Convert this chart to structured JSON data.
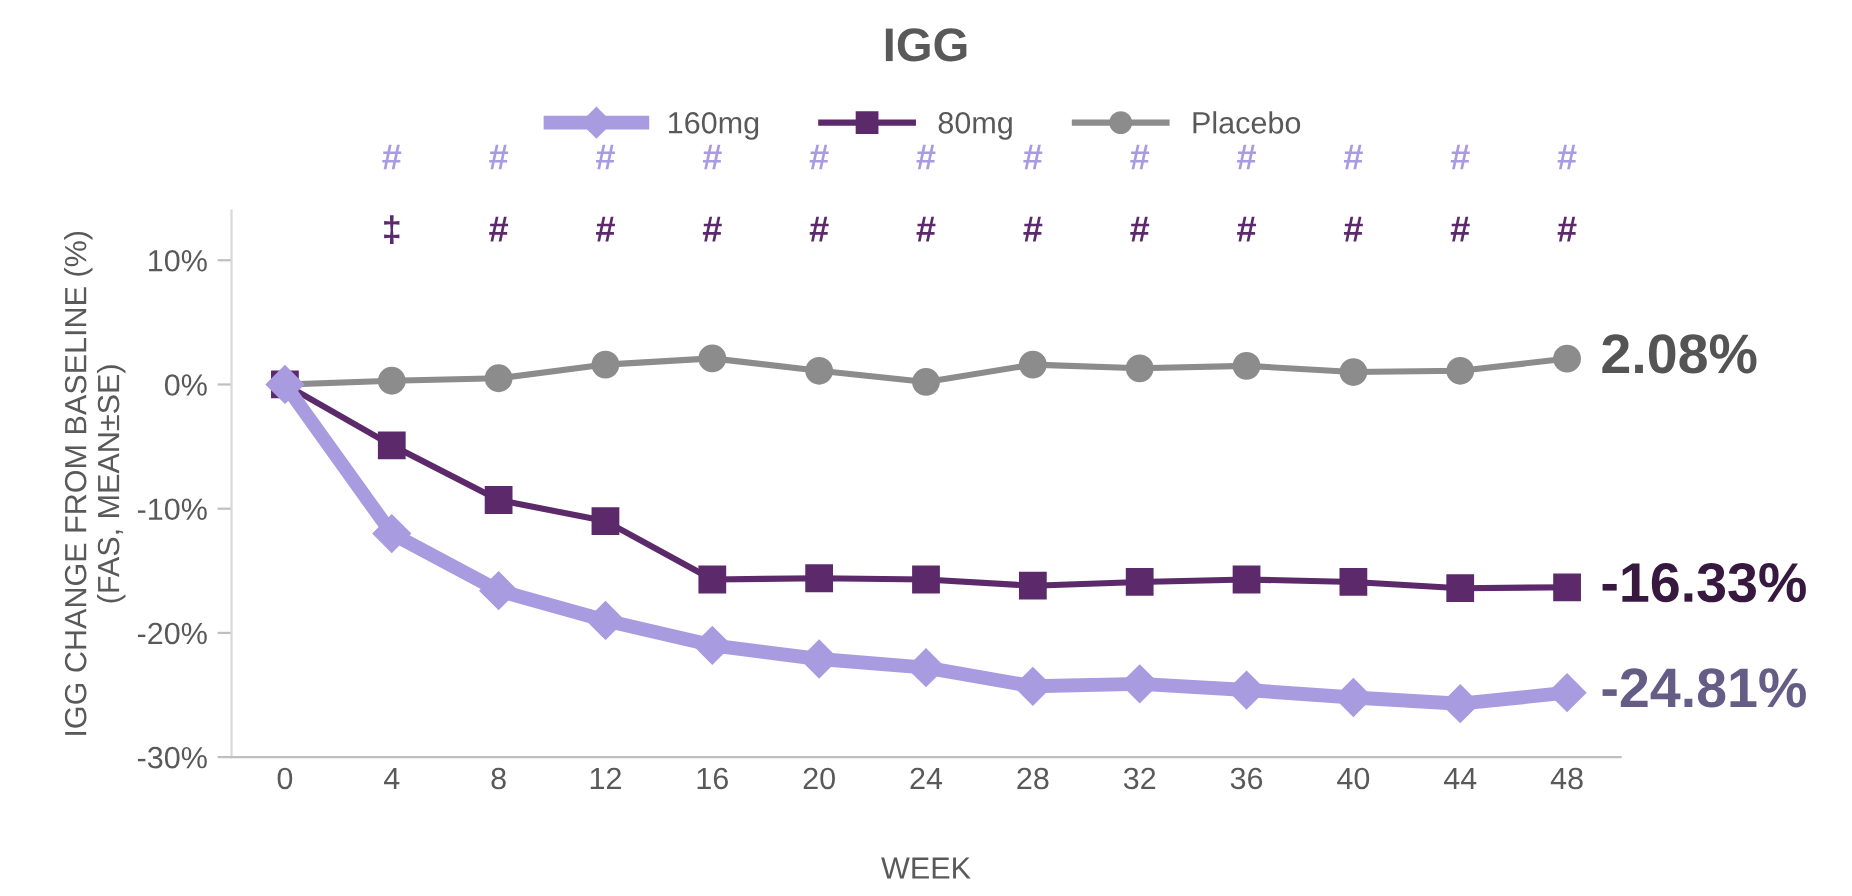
{
  "chart_data": {
    "type": "line",
    "title": "IGG",
    "xlabel": "WEEK",
    "ylabel": "IGG CHANGE FROM BASELINE (%)\n(FAS, MEAN±SE)",
    "x": [
      0,
      4,
      8,
      12,
      16,
      20,
      24,
      28,
      32,
      36,
      40,
      44,
      48
    ],
    "xlim": [
      -2,
      50
    ],
    "xticks": [
      0,
      4,
      8,
      12,
      16,
      20,
      24,
      28,
      32,
      36,
      40,
      44,
      48
    ],
    "ylim": [
      -30,
      14
    ],
    "yticks": [
      {
        "value": -30,
        "label": "-30%"
      },
      {
        "value": -20,
        "label": "-20%"
      },
      {
        "value": -10,
        "label": "-10%"
      },
      {
        "value": 0,
        "label": "0%"
      },
      {
        "value": 10,
        "label": "10%"
      }
    ],
    "grid": false,
    "legend": "top",
    "line_style": "solid",
    "series": [
      {
        "name": "160mg",
        "color": "#a99be0",
        "marker": "diamond",
        "values": [
          0,
          -12.0,
          -16.6,
          -19.0,
          -21.0,
          -22.1,
          -22.8,
          -24.3,
          -24.1,
          -24.6,
          -25.2,
          -25.7,
          -24.81
        ],
        "value_labels": [
          null,
          null,
          null,
          null,
          null,
          null,
          null,
          null,
          null,
          null,
          null,
          null,
          "-24.81%"
        ]
      },
      {
        "name": "80mg",
        "color": "#5c2a6b",
        "marker": "square",
        "values": [
          0,
          -4.9,
          -9.3,
          -11.0,
          -15.7,
          -15.6,
          -15.7,
          -16.2,
          -15.9,
          -15.7,
          -15.9,
          -16.4,
          -16.33
        ],
        "value_labels": [
          null,
          null,
          null,
          null,
          null,
          null,
          null,
          null,
          null,
          null,
          null,
          null,
          "-16.33%"
        ]
      },
      {
        "name": "Placebo",
        "color": "#8c8c8c",
        "marker": "circle",
        "values": [
          0,
          0.3,
          0.5,
          1.6,
          2.1,
          1.1,
          0.2,
          1.6,
          1.3,
          1.5,
          1.0,
          1.1,
          2.08
        ],
        "value_labels": [
          null,
          null,
          null,
          null,
          null,
          null,
          null,
          null,
          null,
          null,
          null,
          null,
          "2.08%"
        ]
      }
    ],
    "annotations": [
      "#",
      "#",
      "#",
      "#",
      "#",
      "#",
      "#",
      "#",
      "#",
      "#",
      "#",
      "#",
      "‡",
      "#",
      "#",
      "#",
      "#",
      "#",
      "#",
      "#",
      "#",
      "#",
      "#",
      "#"
    ]
  }
}
